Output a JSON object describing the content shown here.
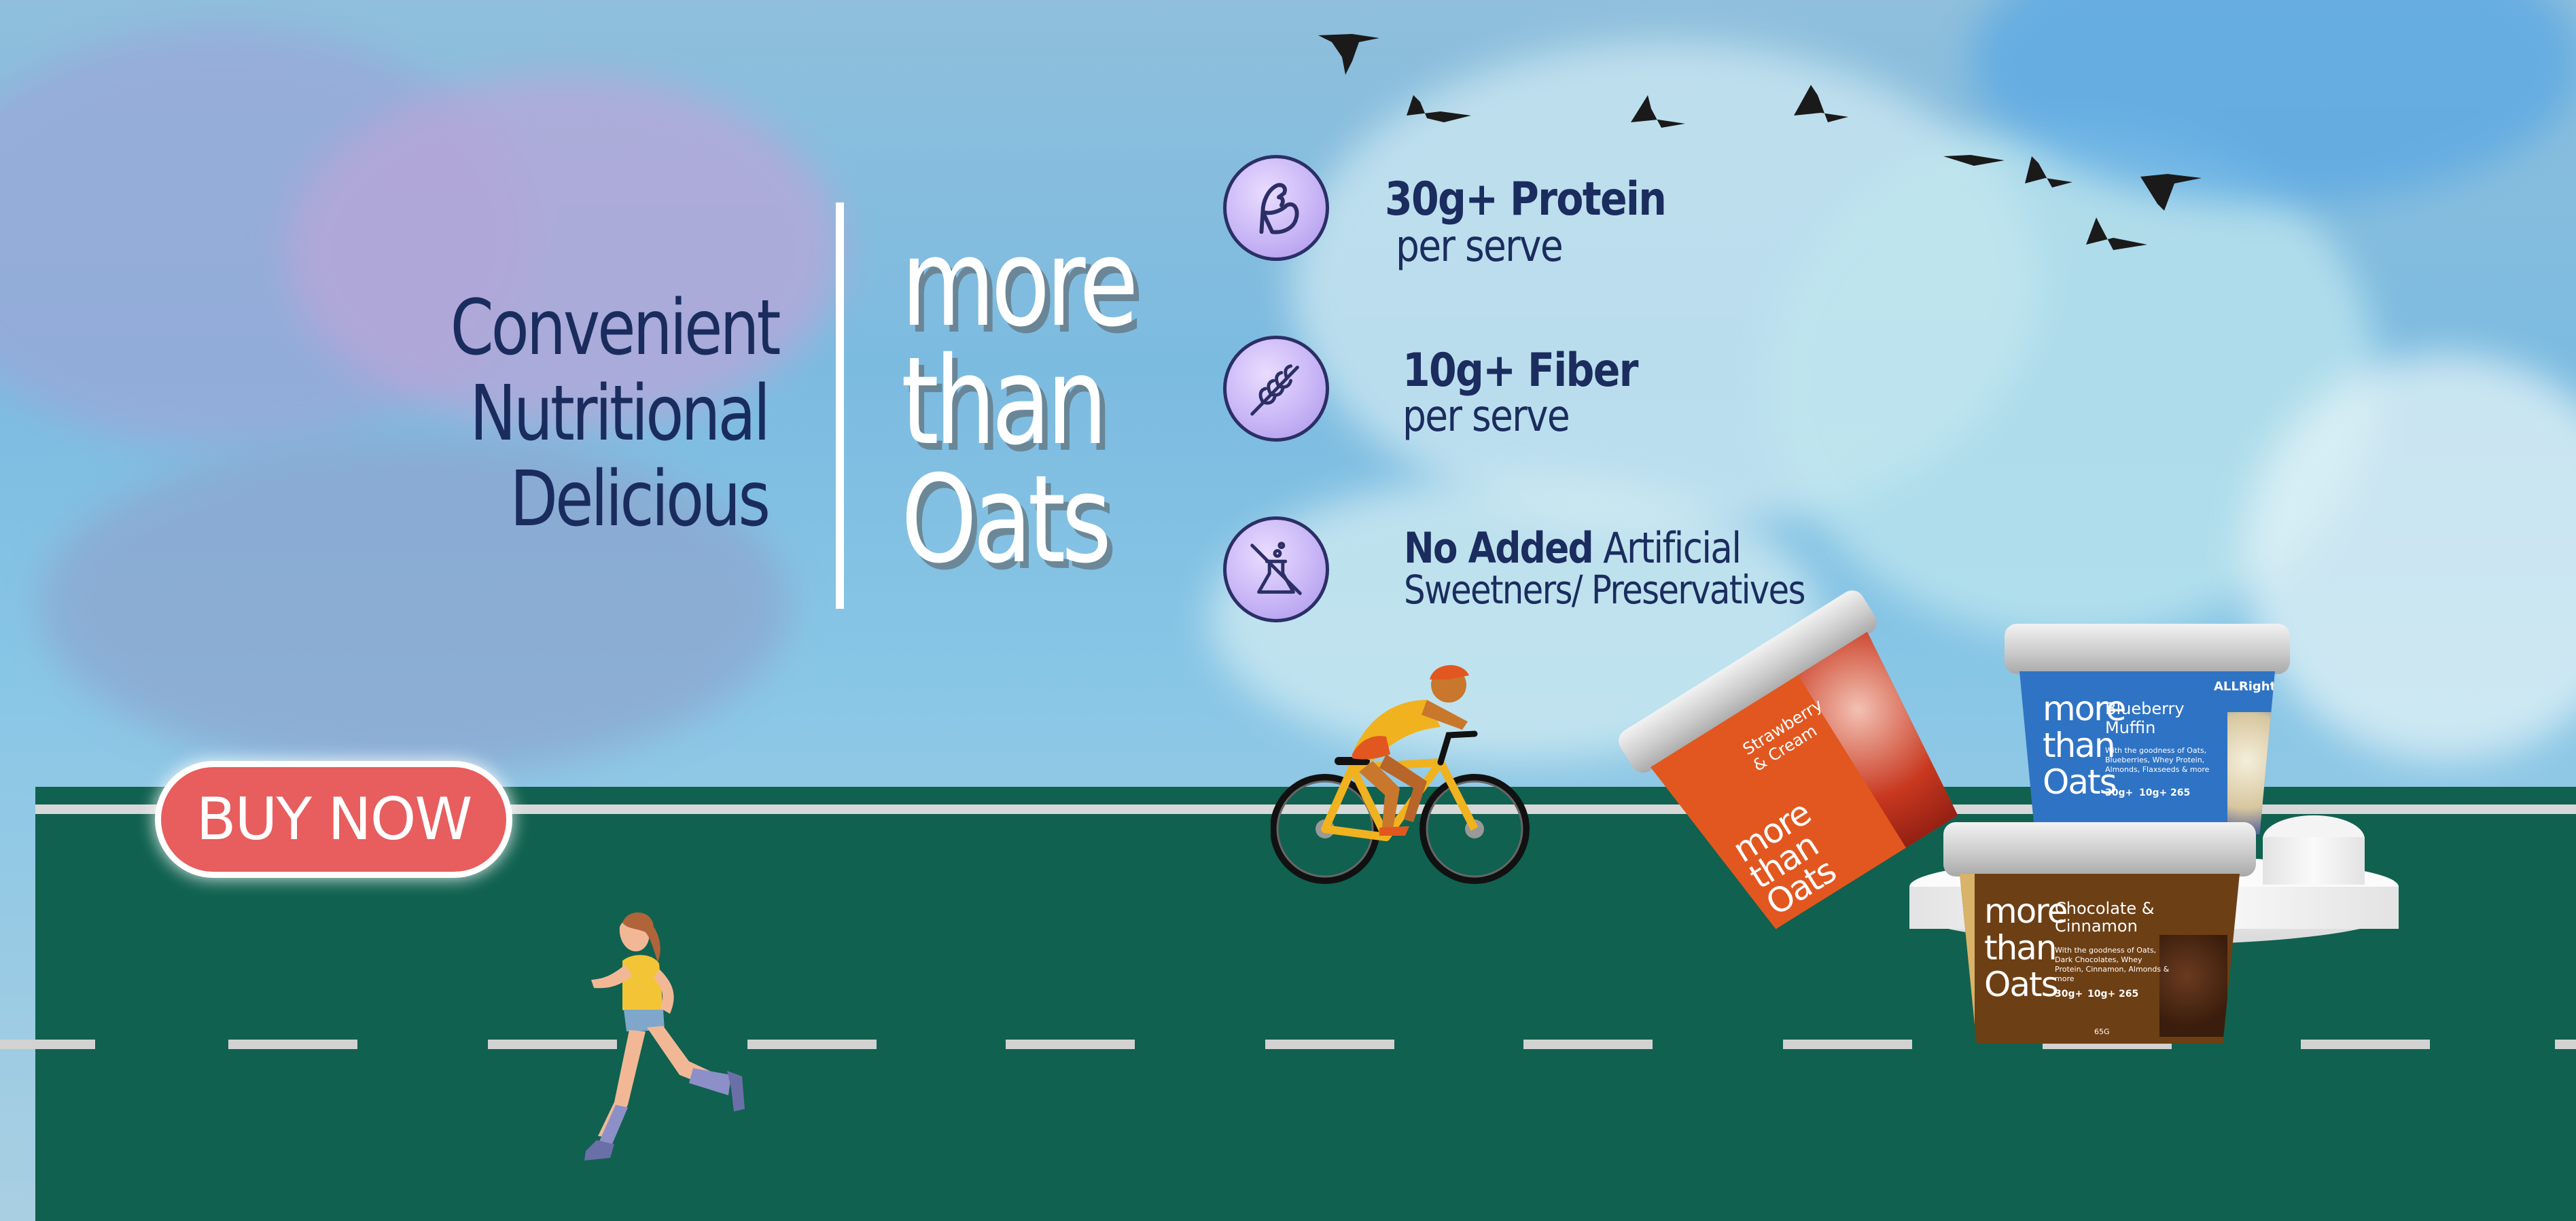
{
  "tagline": {
    "line1": "Convenient",
    "line2": "Nutritional",
    "line3": "Delicious"
  },
  "brand": {
    "line1": "more",
    "line2": "than",
    "line3": "Oats"
  },
  "features": [
    {
      "icon": "flexed-bicep-icon",
      "title": "30g+ Protein",
      "subtitle": "per serve"
    },
    {
      "icon": "wheat-grain-icon",
      "title": "10g+ Fiber",
      "subtitle": "per serve"
    },
    {
      "icon": "no-chemicals-flask-icon",
      "title_bold": "No Added",
      "title_rest": " Artificial",
      "subtitle": "Sweetners/ Preservatives"
    }
  ],
  "cta": {
    "label": "BUY NOW"
  },
  "products": [
    {
      "flavor_line1": "Strawberry",
      "flavor_line2": "& Cream",
      "brand_line1": "more",
      "brand_line2": "than",
      "brand_line3": "Oats",
      "color": "#e2571f"
    },
    {
      "flavor_line1": "Blueberry",
      "flavor_line2": "Muffin",
      "brand_line1": "more",
      "brand_line2": "than",
      "brand_line3": "Oats",
      "logo": "ALLRight",
      "description": "With the goodness of Oats, Blueberries, Whey Protein, Almonds, Flaxseeds & more",
      "stat1": "30g+",
      "stat2": "10g+",
      "stat3": "265",
      "color": "#2f73c4"
    },
    {
      "flavor_line1": "Chocolate &",
      "flavor_line2": "Cinnamon",
      "brand_line1": "more",
      "brand_line2": "than",
      "brand_line3": "Oats",
      "description": "With the goodness of Oats, Dark Chocolates, Whey Protein, Cinnamon, Almonds & more",
      "stat1": "30g+",
      "stat2": "10g+",
      "stat3": "265",
      "weight": "65G",
      "color": "#6d3f14"
    }
  ],
  "colors": {
    "navy": "#1a2c5e",
    "road": "#10614f",
    "button": "#e85d5d",
    "icon_bg": "#c8b6f6"
  }
}
